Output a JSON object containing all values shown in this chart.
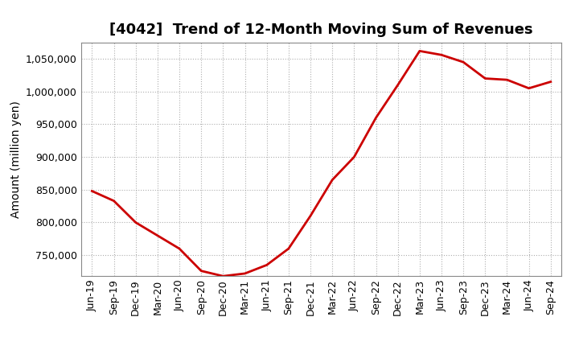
{
  "title": "[4042]  Trend of 12-Month Moving Sum of Revenues",
  "ylabel": "Amount (million yen)",
  "line_color": "#cc0000",
  "line_width": 2.0,
  "background_color": "#ffffff",
  "plot_bg_color": "#ffffff",
  "grid_color": "#999999",
  "x_labels": [
    "Jun-19",
    "Sep-19",
    "Dec-19",
    "Mar-20",
    "Jun-20",
    "Sep-20",
    "Dec-20",
    "Mar-21",
    "Jun-21",
    "Sep-21",
    "Dec-21",
    "Mar-22",
    "Jun-22",
    "Sep-22",
    "Dec-22",
    "Mar-23",
    "Jun-23",
    "Sep-23",
    "Dec-23",
    "Mar-24",
    "Jun-24",
    "Sep-24"
  ],
  "y_values": [
    848000,
    833000,
    800000,
    780000,
    760000,
    726000,
    718000,
    722000,
    735000,
    760000,
    810000,
    865000,
    900000,
    960000,
    1010000,
    1062000,
    1056000,
    1045000,
    1020000,
    1018000,
    1005000,
    1015000
  ],
  "ylim": [
    718000,
    1075000
  ],
  "yticks": [
    750000,
    800000,
    850000,
    900000,
    950000,
    1000000,
    1050000
  ],
  "title_fontsize": 13,
  "axis_fontsize": 10,
  "tick_fontsize": 9
}
